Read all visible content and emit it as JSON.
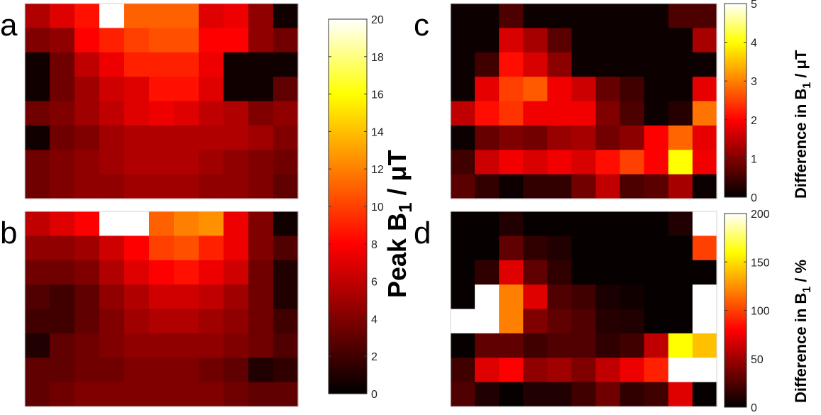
{
  "figure": {
    "panel_labels": [
      "a",
      "b",
      "c",
      "d"
    ]
  },
  "colormap": [
    "#000000",
    "#800000",
    "#ff0000",
    "#ff8000",
    "#ffff00",
    "#ffffff"
  ],
  "chart_data": [
    {
      "type": "heatmap",
      "panel": "a",
      "rows": 8,
      "cols": 11,
      "clim": [
        0,
        20
      ],
      "values": [
        [
          5.5,
          7,
          8.5,
          20,
          11,
          11,
          11,
          7,
          7.5,
          4.5,
          0.5
        ],
        [
          4,
          4.5,
          8,
          9,
          10,
          10.5,
          10.5,
          8,
          8,
          4.5,
          3.5
        ],
        [
          0.5,
          3.5,
          6,
          7.5,
          9,
          9,
          9,
          7.5,
          0.5,
          0.5,
          0.5
        ],
        [
          0.5,
          3.5,
          5,
          6.5,
          7,
          8.5,
          8.5,
          7,
          0.5,
          0.5,
          3
        ],
        [
          3.5,
          4,
          5,
          6,
          7,
          7.5,
          7,
          6,
          5.5,
          4,
          4.5
        ],
        [
          0.5,
          3.5,
          4,
          5,
          5.5,
          5.5,
          5.5,
          5.5,
          5.5,
          5,
          4
        ],
        [
          3.5,
          4,
          4.5,
          5,
          5.5,
          5.5,
          5.5,
          5,
          4.5,
          4,
          3.5
        ],
        [
          3.5,
          4,
          4.5,
          4.5,
          5,
          5,
          5,
          4.5,
          4.5,
          4,
          3
        ]
      ]
    },
    {
      "type": "heatmap",
      "panel": "b",
      "rows": 8,
      "cols": 11,
      "clim": [
        0,
        20
      ],
      "values": [
        [
          6,
          7,
          8,
          20,
          20,
          11,
          12,
          12.5,
          7.5,
          4,
          0.5
        ],
        [
          4.5,
          4.5,
          5,
          6.5,
          8,
          10,
          10.5,
          9,
          7.5,
          4,
          2.5
        ],
        [
          3.5,
          3.5,
          4,
          5.5,
          7,
          8,
          8.5,
          7.5,
          6.5,
          3.5,
          1
        ],
        [
          2.5,
          2,
          3,
          4.5,
          5.5,
          6.5,
          6.5,
          6,
          5,
          3.5,
          1
        ],
        [
          2,
          2,
          3,
          4,
          5,
          5.5,
          5.5,
          5,
          4.5,
          3.5,
          2
        ],
        [
          1,
          3,
          3.5,
          4,
          4.5,
          4.5,
          4.5,
          4.5,
          4,
          3.5,
          2.5
        ],
        [
          3,
          3,
          3.5,
          3.5,
          4,
          4,
          4,
          3.5,
          3,
          1,
          1.5
        ],
        [
          3,
          3.5,
          4,
          4,
          4,
          4,
          4,
          4,
          3.5,
          3,
          3
        ]
      ]
    },
    {
      "type": "heatmap",
      "panel": "c",
      "rows": 8,
      "cols": 11,
      "clim": [
        0,
        5
      ],
      "colorbar_label": "Difference in B1 / μT",
      "ticks": [
        0,
        1,
        2,
        3,
        4,
        5
      ],
      "values": [
        [
          0.1,
          0.1,
          0.6,
          0.1,
          0.1,
          0.1,
          0.1,
          0.1,
          0.1,
          0.6,
          0.6
        ],
        [
          0.1,
          0.1,
          1.7,
          1.3,
          0.7,
          0.1,
          0.1,
          0.1,
          0.1,
          0.1,
          1.3
        ],
        [
          0.1,
          0.5,
          2.1,
          1.7,
          1.1,
          0.1,
          0.1,
          0.1,
          0.1,
          0.1,
          0.1
        ],
        [
          0.1,
          1.8,
          2.5,
          2.7,
          1.9,
          1.6,
          0.8,
          0.5,
          0.1,
          0.1,
          1.8
        ],
        [
          1.5,
          2.1,
          2.4,
          1.9,
          1.9,
          1.9,
          1.0,
          0.6,
          0.1,
          0.3,
          2.9
        ],
        [
          0.1,
          0.8,
          1.0,
          0.9,
          1.2,
          1.3,
          0.9,
          1.1,
          2.0,
          2.8,
          1.8
        ],
        [
          0.5,
          1.6,
          1.9,
          1.7,
          1.9,
          1.7,
          2.1,
          2.5,
          2.0,
          4.0,
          1.9
        ],
        [
          0.7,
          0.4,
          0.1,
          0.4,
          0.4,
          0.9,
          1.5,
          0.6,
          0.7,
          1.3,
          0.1
        ]
      ]
    },
    {
      "type": "heatmap",
      "panel": "d",
      "rows": 8,
      "cols": 11,
      "clim": [
        0,
        200
      ],
      "colorbar_label": "Difference in B1 / %",
      "ticks": [
        0,
        50,
        100,
        150,
        200
      ],
      "values": [
        [
          2,
          2,
          10,
          2,
          2,
          2,
          2,
          2,
          2,
          10,
          200
        ],
        [
          2,
          2,
          30,
          15,
          10,
          2,
          2,
          2,
          2,
          2,
          100
        ],
        [
          2,
          15,
          70,
          30,
          15,
          2,
          2,
          2,
          2,
          2,
          2
        ],
        [
          2,
          200,
          120,
          70,
          25,
          20,
          8,
          5,
          2,
          2,
          200
        ],
        [
          200,
          200,
          120,
          40,
          30,
          25,
          12,
          10,
          2,
          2,
          200
        ],
        [
          2,
          30,
          30,
          20,
          25,
          25,
          15,
          20,
          60,
          160,
          140
        ],
        [
          20,
          70,
          80,
          45,
          50,
          40,
          60,
          75,
          90,
          200,
          200
        ],
        [
          25,
          10,
          2,
          10,
          10,
          20,
          35,
          15,
          20,
          70,
          2
        ]
      ]
    }
  ],
  "colorbars": [
    {
      "id": "ab",
      "label_main": "Peak B",
      "label_sub": "1",
      "label_unit": " /  μT",
      "clim": [
        0,
        20
      ],
      "ticks": [
        0,
        2,
        4,
        6,
        8,
        10,
        12,
        14,
        16,
        18,
        20
      ]
    },
    {
      "id": "c",
      "label_main": "Difference in B",
      "label_sub": "1",
      "label_unit": " /  μT",
      "clim": [
        0,
        5
      ],
      "ticks": [
        0,
        1,
        2,
        3,
        4,
        5
      ]
    },
    {
      "id": "d",
      "label_main": "Difference in B",
      "label_sub": "1",
      "label_unit": " / %",
      "clim": [
        0,
        200
      ],
      "ticks": [
        0,
        50,
        100,
        150,
        200
      ]
    }
  ]
}
